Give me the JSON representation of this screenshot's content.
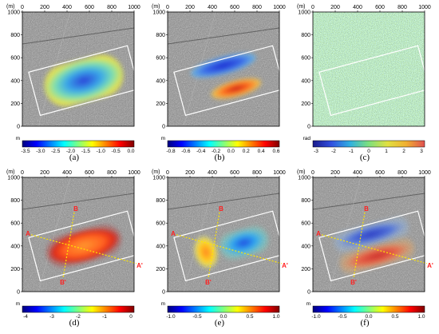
{
  "figure": {
    "panels": [
      {
        "id": "a",
        "caption": "(a)",
        "unit_label": "m",
        "axis_unit": "(m)",
        "x_ticks": [
          "0",
          "200",
          "400",
          "600",
          "800",
          "1000"
        ],
        "y_ticks": [
          "1000",
          "800",
          "600",
          "400",
          "200",
          "0"
        ],
        "colorbar": {
          "palette": "jet",
          "ticks": [
            "-3.5",
            "-3.0",
            "-2.5",
            "-2.0",
            "-1.5",
            "-1.0",
            "-0.5",
            "0.0"
          ]
        },
        "overlay": "single-blob",
        "rectangle": true,
        "profiles": null
      },
      {
        "id": "b",
        "caption": "(b)",
        "unit_label": "m",
        "axis_unit": "(m)",
        "x_ticks": [
          "0",
          "200",
          "400",
          "600",
          "800",
          "1000"
        ],
        "y_ticks": [
          "1000",
          "800",
          "600",
          "400",
          "200",
          "0"
        ],
        "colorbar": {
          "palette": "jet",
          "ticks": [
            "-0.8",
            "-0.6",
            "-0.4",
            "-0.2",
            "0.0",
            "0.2",
            "0.4",
            "0.6"
          ]
        },
        "overlay": "two-lobes",
        "rectangle": true,
        "profiles": null
      },
      {
        "id": "c",
        "caption": "(c)",
        "unit_label": "rad",
        "axis_unit": "(m)",
        "x_ticks": [
          "0",
          "200",
          "400",
          "600",
          "800",
          "1000"
        ],
        "y_ticks": [
          "1000",
          "800",
          "600",
          "400",
          "200",
          "0"
        ],
        "colorbar": {
          "palette": "phase",
          "ticks": [
            "-3",
            "-2",
            "-1",
            "0",
            "1",
            "2",
            "3"
          ]
        },
        "overlay": "noise",
        "rectangle": true,
        "profiles": null
      },
      {
        "id": "d",
        "caption": "(d)",
        "unit_label": "m",
        "axis_unit": "(m)",
        "x_ticks": [
          "0",
          "200",
          "400",
          "600",
          "800",
          "1000"
        ],
        "y_ticks": [
          "1000",
          "800",
          "600",
          "400",
          "200",
          "0"
        ],
        "colorbar": {
          "palette": "jet",
          "ticks": [
            "-4",
            "-3",
            "-2",
            "-1",
            "0"
          ]
        },
        "overlay": "ring",
        "rectangle": true,
        "profiles": {
          "a": "A",
          "a_end": "A'",
          "b": "B",
          "b_end": "B'"
        }
      },
      {
        "id": "e",
        "caption": "(e)",
        "unit_label": "m",
        "axis_unit": "(m)",
        "x_ticks": [
          "0",
          "200",
          "400",
          "600",
          "800",
          "1000"
        ],
        "y_ticks": [
          "1000",
          "800",
          "600",
          "400",
          "200",
          "0"
        ],
        "colorbar": {
          "palette": "jet",
          "ticks": [
            "-1.0",
            "-0.5",
            "0.0",
            "0.5",
            "1.0"
          ]
        },
        "overlay": "split",
        "rectangle": true,
        "profiles": {
          "a": "A",
          "a_end": "A'",
          "b": "B",
          "b_end": "B'"
        }
      },
      {
        "id": "f",
        "caption": "(f)",
        "unit_label": "m",
        "axis_unit": "(m)",
        "x_ticks": [
          "0",
          "200",
          "400",
          "600",
          "800",
          "1000"
        ],
        "y_ticks": [
          "1000",
          "800",
          "600",
          "400",
          "200",
          "0"
        ],
        "colorbar": {
          "palette": "jet",
          "ticks": [
            "-1.0",
            "-0.5",
            "0.0",
            "0.5",
            "1.0"
          ]
        },
        "overlay": "stacked",
        "rectangle": true,
        "profiles": {
          "a": "A",
          "a_end": "A'",
          "b": "B",
          "b_end": "B'"
        }
      }
    ],
    "colors": {
      "rectangle": "#ffffff",
      "profile_line": "#ffe600",
      "profile_label": "#ff2020"
    }
  }
}
